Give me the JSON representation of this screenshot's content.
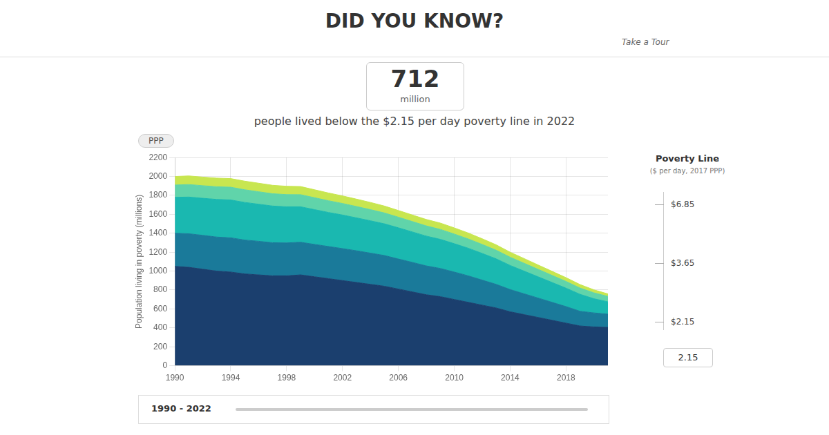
{
  "chart_data": {
    "type": "area",
    "stacked": true,
    "grid": true,
    "title": "DID YOU KNOW?",
    "subtitle": "people lived below the $2.15 per day poverty line in 2022",
    "ylabel": "Population living in poverty (millions)",
    "annotations": [
      "712",
      "million",
      "Take a Tour",
      "PPP",
      "Poverty Line",
      "($ per day, 2017 PPP)",
      "$6.85",
      "$3.65",
      "$2.15",
      "2.15",
      "1990 - 2022"
    ],
    "x": [
      1990,
      1991,
      1992,
      1993,
      1994,
      1995,
      1996,
      1997,
      1998,
      1999,
      2000,
      2001,
      2002,
      2003,
      2004,
      2005,
      2006,
      2007,
      2008,
      2009,
      2010,
      2011,
      2012,
      2013,
      2014,
      2015,
      2016,
      2017,
      2018,
      2019,
      2020,
      2021
    ],
    "series": [
      {
        "color": "#1b3f6e",
        "values": [
          1050,
          1040,
          1020,
          1000,
          990,
          970,
          960,
          950,
          950,
          960,
          940,
          920,
          900,
          880,
          860,
          840,
          810,
          780,
          750,
          730,
          700,
          670,
          640,
          610,
          570,
          540,
          510,
          480,
          450,
          420,
          410,
          405
        ]
      },
      {
        "color": "#1a7a9a",
        "values": [
          350,
          355,
          358,
          360,
          362,
          358,
          355,
          350,
          348,
          345,
          342,
          340,
          338,
          335,
          330,
          325,
          318,
          312,
          305,
          298,
          290,
          280,
          265,
          250,
          235,
          220,
          205,
          190,
          175,
          155,
          148,
          140
        ]
      },
      {
        "color": "#1ab8b0",
        "values": [
          380,
          388,
          392,
          398,
          400,
          398,
          392,
          388,
          382,
          375,
          368,
          360,
          355,
          348,
          342,
          335,
          330,
          322,
          315,
          308,
          300,
          292,
          282,
          270,
          255,
          240,
          225,
          210,
          195,
          180,
          150,
          130
        ]
      },
      {
        "color": "#60d4aa",
        "values": [
          130,
          132,
          133,
          134,
          135,
          134,
          132,
          130,
          129,
          128,
          126,
          124,
          122,
          120,
          118,
          115,
          112,
          110,
          108,
          105,
          102,
          98,
          95,
          91,
          87,
          83,
          79,
          75,
          71,
          66,
          62,
          58
        ]
      },
      {
        "color": "#c8e650",
        "values": [
          90,
          91,
          91,
          91,
          91,
          91,
          90,
          89,
          88,
          86,
          84,
          82,
          80,
          78,
          76,
          73,
          71,
          69,
          68,
          67,
          65,
          63,
          60,
          57,
          53,
          50,
          46,
          43,
          40,
          37,
          32,
          26
        ]
      }
    ],
    "xlim": [
      1990,
      2021
    ],
    "xticks": [
      1990,
      1994,
      1998,
      2002,
      2006,
      2010,
      2014,
      2018
    ],
    "ylim": [
      0,
      2200
    ],
    "yticks": [
      0,
      200,
      400,
      600,
      800,
      1000,
      1200,
      1400,
      1600,
      1800,
      2000,
      2200
    ]
  }
}
